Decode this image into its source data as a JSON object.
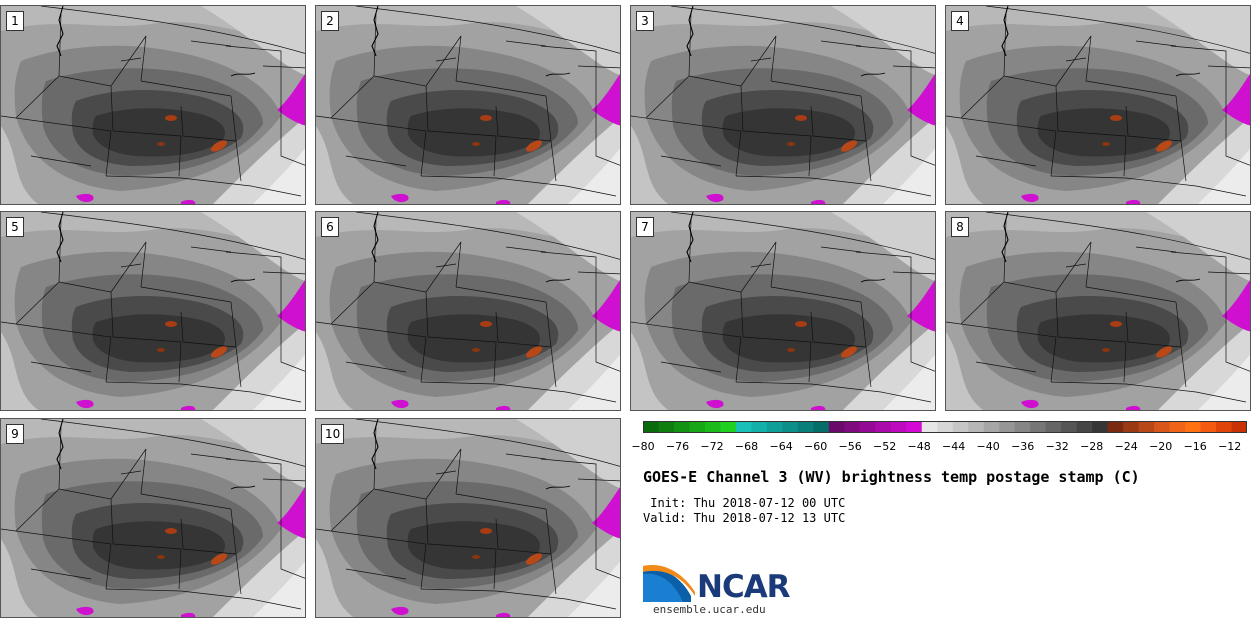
{
  "panels": [
    {
      "label": "1"
    },
    {
      "label": "2"
    },
    {
      "label": "3"
    },
    {
      "label": "4"
    },
    {
      "label": "5"
    },
    {
      "label": "6"
    },
    {
      "label": "7"
    },
    {
      "label": "8"
    },
    {
      "label": "9"
    },
    {
      "label": "10"
    }
  ],
  "colorbar": {
    "ticks": [
      "−80",
      "−76",
      "−72",
      "−68",
      "−64",
      "−60",
      "−56",
      "−52",
      "−48",
      "−44",
      "−40",
      "−36",
      "−32",
      "−28",
      "−24",
      "−20",
      "−16",
      "−12"
    ],
    "range": [
      -80,
      -10
    ],
    "colors": [
      "#0a6b0a",
      "#0f7e0f",
      "#139313",
      "#17a717",
      "#1bbb1b",
      "#20d020",
      "#18c0b8",
      "#12b0a8",
      "#0ea098",
      "#0b8f88",
      "#087f78",
      "#066e68",
      "#6a0a6a",
      "#7f0a7f",
      "#940a94",
      "#a90aa9",
      "#be0abe",
      "#d30ad3",
      "#e6e6e6",
      "#d6d6d6",
      "#c6c6c6",
      "#b6b6b6",
      "#a6a6a6",
      "#969696",
      "#868686",
      "#767676",
      "#666666",
      "#565656",
      "#464646",
      "#363636",
      "#7a2a10",
      "#9a3a14",
      "#b84818",
      "#d8561a",
      "#f06418",
      "#ff7010",
      "#f55a10",
      "#e04408",
      "#c83204"
    ]
  },
  "title": "GOES-E Channel 3 (WV) brightness temp postage stamp (C)",
  "init": " Init: Thu 2018-07-12 00 UTC",
  "valid": "Valid: Thu 2018-07-12 13 UTC",
  "logo": {
    "name": "NCAR",
    "url": "ensemble.ucar.edu"
  }
}
